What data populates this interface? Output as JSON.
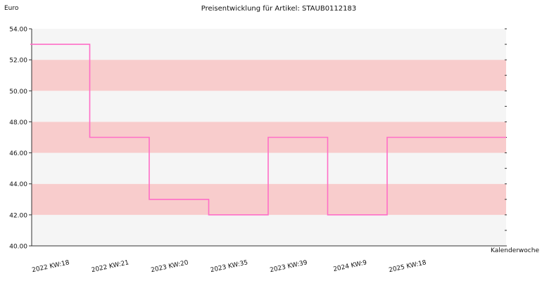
{
  "chart_data": {
    "type": "line",
    "step": true,
    "title": "Preisentwicklung für Artikel: STAUB0112183",
    "ylabel": "Euro",
    "xlabel": "Kalenderwoche",
    "ylim": [
      40,
      54
    ],
    "yticks": [
      40,
      42,
      44,
      46,
      48,
      50,
      52,
      54
    ],
    "ytick_labels": [
      "40.00",
      "42.00",
      "44.00",
      "46.00",
      "48.00",
      "50.00",
      "52.00",
      "54.00"
    ],
    "categories": [
      "2022 KW:18",
      "2022 KW:21",
      "2023 KW:20",
      "2023 KW:35",
      "2023 KW:39",
      "2024 KW:9",
      "2025 KW:18"
    ],
    "series": [
      {
        "values": [
          53,
          47,
          43,
          42,
          47,
          42,
          47
        ]
      }
    ],
    "grid": "alternating horizontal bands",
    "colors": {
      "line": "#ff6ec7",
      "band_light": "#f5f5f5",
      "band_dark": "#f8cccc",
      "axis": "#333333"
    }
  }
}
